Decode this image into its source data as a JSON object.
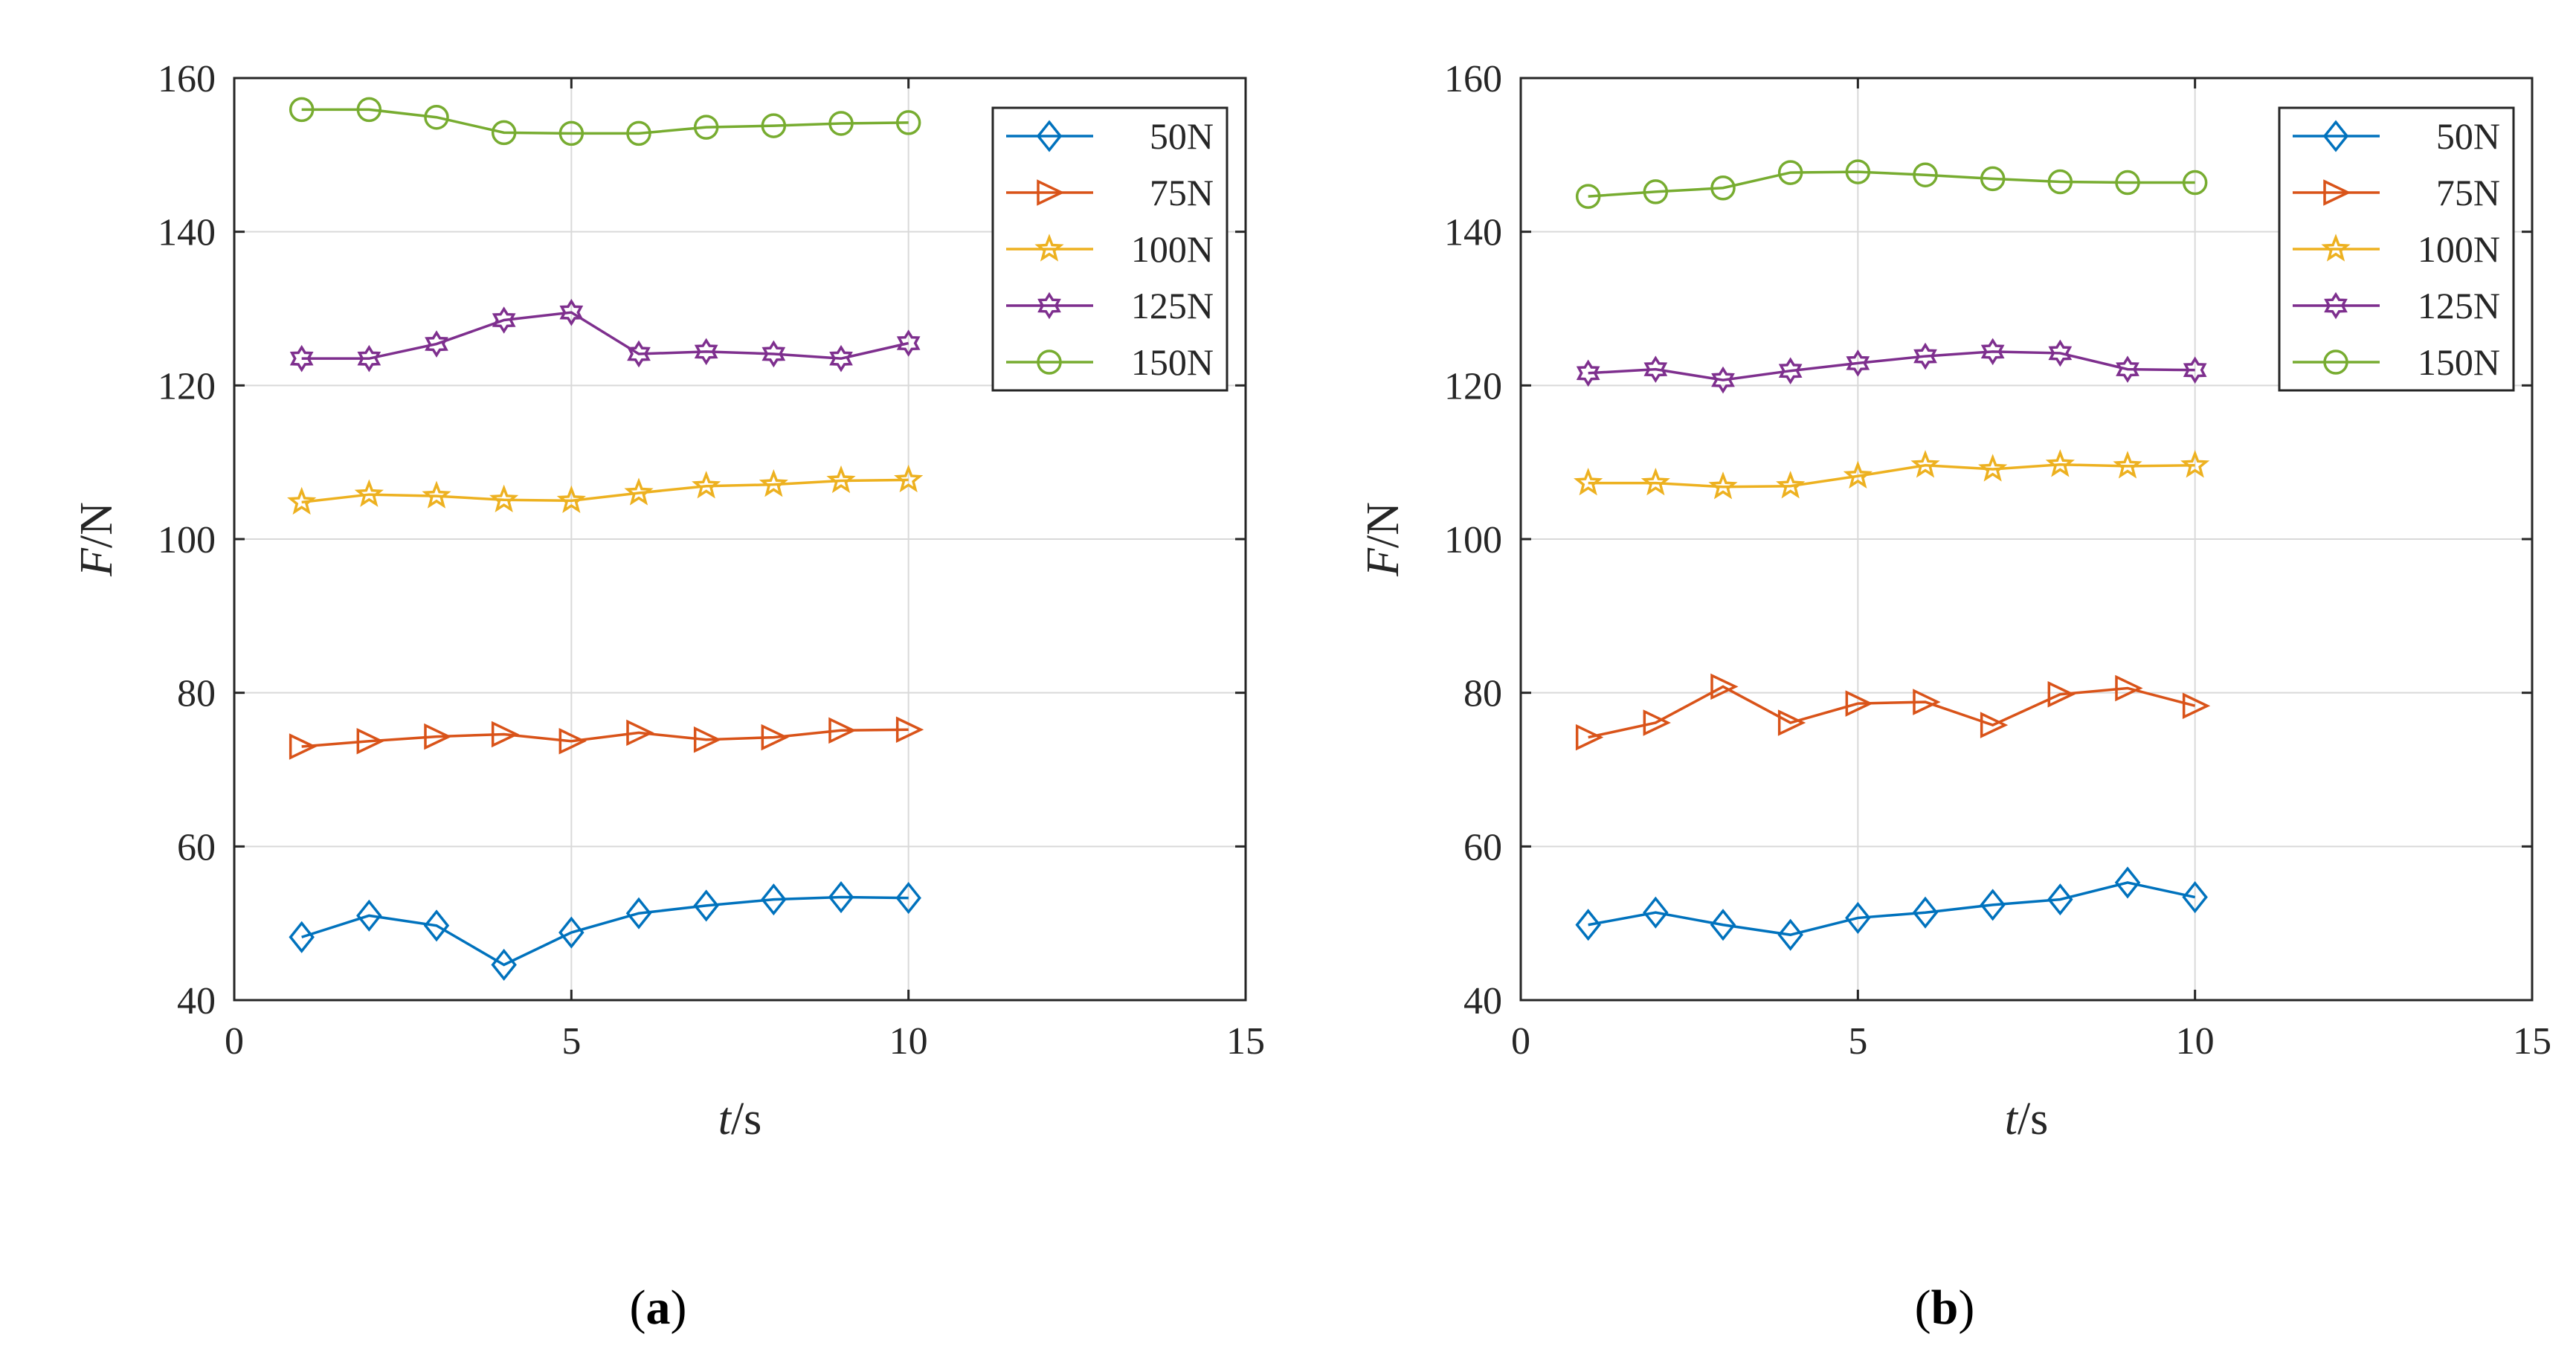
{
  "chart_data": [
    {
      "type": "line",
      "panel_label": "a",
      "xlabel": {
        "italic": "t",
        "unit": "/s"
      },
      "ylabel": {
        "italic": "F",
        "unit": "/N"
      },
      "xlim": [
        0,
        15
      ],
      "ylim": [
        40,
        160
      ],
      "xticks": [
        "0",
        "5",
        "10",
        "15"
      ],
      "yticks": [
        "40",
        "60",
        "80",
        "100",
        "120",
        "140",
        "160"
      ],
      "grid": true,
      "legend_position": "top-right",
      "x": [
        1,
        2,
        3,
        4,
        5,
        6,
        7,
        8,
        9,
        10
      ],
      "series": [
        {
          "name": "50N",
          "marker": "diamond",
          "color": "#0072BD",
          "values": [
            48.2,
            51.0,
            49.7,
            44.6,
            48.8,
            51.3,
            52.3,
            53.1,
            53.4,
            53.3
          ]
        },
        {
          "name": "75N",
          "marker": "triangle-right",
          "color": "#D95319",
          "values": [
            73.0,
            73.7,
            74.3,
            74.6,
            73.7,
            74.8,
            73.9,
            74.2,
            75.1,
            75.2
          ]
        },
        {
          "name": "100N",
          "marker": "star",
          "color": "#EDB120",
          "values": [
            104.8,
            105.8,
            105.6,
            105.1,
            105.0,
            106.0,
            106.9,
            107.1,
            107.6,
            107.7
          ]
        },
        {
          "name": "125N",
          "marker": "hexagram",
          "color": "#7E2F8E",
          "values": [
            123.5,
            123.5,
            125.4,
            128.5,
            129.5,
            124.1,
            124.4,
            124.1,
            123.5,
            125.5
          ]
        },
        {
          "name": "150N",
          "marker": "circle",
          "color": "#77AC30",
          "values": [
            155.9,
            155.9,
            154.9,
            152.9,
            152.8,
            152.8,
            153.6,
            153.8,
            154.1,
            154.2
          ]
        }
      ]
    },
    {
      "type": "line",
      "panel_label": "b",
      "xlabel": {
        "italic": "t",
        "unit": "/s"
      },
      "ylabel": {
        "italic": "F",
        "unit": "/N"
      },
      "xlim": [
        0,
        15
      ],
      "ylim": [
        40,
        160
      ],
      "xticks": [
        "0",
        "5",
        "10",
        "15"
      ],
      "yticks": [
        "40",
        "60",
        "80",
        "100",
        "120",
        "140",
        "160"
      ],
      "grid": true,
      "legend_position": "top-right",
      "x": [
        1,
        2,
        3,
        4,
        5,
        6,
        7,
        8,
        9,
        10
      ],
      "series": [
        {
          "name": "50N",
          "marker": "diamond",
          "color": "#0072BD",
          "values": [
            49.8,
            51.4,
            49.8,
            48.5,
            50.7,
            51.4,
            52.4,
            53.1,
            55.3,
            53.4
          ]
        },
        {
          "name": "75N",
          "marker": "triangle-right",
          "color": "#D95319",
          "values": [
            74.2,
            76.1,
            80.8,
            76.1,
            78.6,
            78.8,
            75.8,
            79.8,
            80.6,
            78.3
          ]
        },
        {
          "name": "100N",
          "marker": "star",
          "color": "#EDB120",
          "values": [
            107.3,
            107.3,
            106.8,
            106.9,
            108.2,
            109.6,
            109.1,
            109.7,
            109.5,
            109.6
          ]
        },
        {
          "name": "125N",
          "marker": "hexagram",
          "color": "#7E2F8E",
          "values": [
            121.6,
            122.1,
            120.7,
            121.9,
            122.9,
            123.8,
            124.4,
            124.2,
            122.1,
            122.0
          ]
        },
        {
          "name": "150N",
          "marker": "circle",
          "color": "#77AC30",
          "values": [
            144.6,
            145.2,
            145.7,
            147.7,
            147.8,
            147.4,
            146.9,
            146.5,
            146.4,
            146.4
          ]
        }
      ]
    }
  ]
}
